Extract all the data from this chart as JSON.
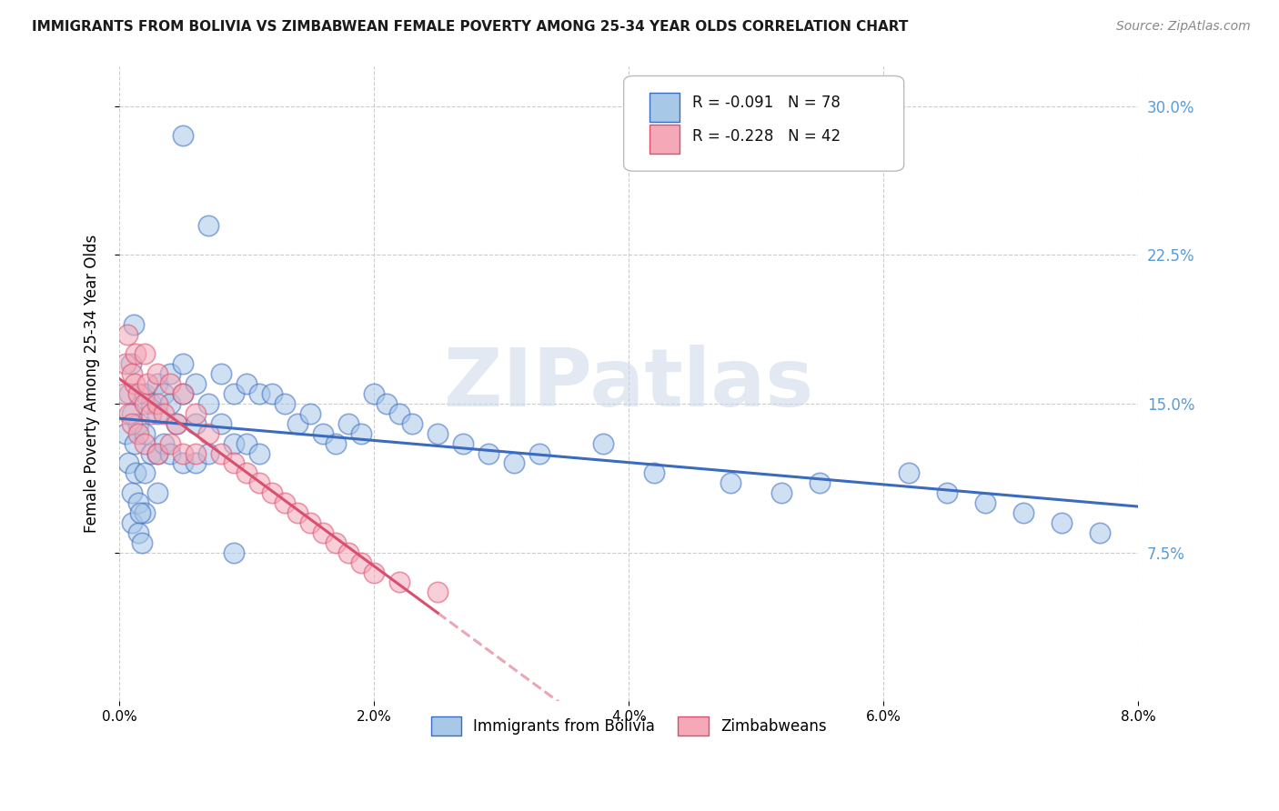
{
  "title": "IMMIGRANTS FROM BOLIVIA VS ZIMBABWEAN FEMALE POVERTY AMONG 25-34 YEAR OLDS CORRELATION CHART",
  "source": "Source: ZipAtlas.com",
  "ylabel": "Female Poverty Among 25-34 Year Olds",
  "y_ticks": [
    0.075,
    0.15,
    0.225,
    0.3
  ],
  "y_tick_labels": [
    "7.5%",
    "15.0%",
    "22.5%",
    "30.0%"
  ],
  "x_ticks": [
    0.0,
    0.02,
    0.04,
    0.06,
    0.08
  ],
  "x_tick_labels": [
    "0.0%",
    "2.0%",
    "4.0%",
    "6.0%",
    "8.0%"
  ],
  "xlim": [
    0.0,
    0.08
  ],
  "ylim": [
    0.0,
    0.32
  ],
  "legend_label1": "Immigrants from Bolivia",
  "legend_label2": "Zimbabweans",
  "R1": "-0.091",
  "N1": "78",
  "R2": "-0.228",
  "N2": "42",
  "color_blue": "#a8c8e8",
  "color_pink": "#f4a8b8",
  "trendline_blue": "#3a6bbf",
  "trendline_pink": "#d94f6e",
  "background_color": "#ffffff",
  "watermark": "ZIPatlas",
  "bolivia_x": [
    0.0005,
    0.0007,
    0.001,
    0.001,
    0.001,
    0.0012,
    0.0013,
    0.0015,
    0.0015,
    0.0015,
    0.002,
    0.002,
    0.002,
    0.002,
    0.0025,
    0.0025,
    0.003,
    0.003,
    0.003,
    0.003,
    0.0035,
    0.0035,
    0.004,
    0.004,
    0.004,
    0.0045,
    0.005,
    0.005,
    0.005,
    0.006,
    0.006,
    0.006,
    0.007,
    0.007,
    0.008,
    0.008,
    0.009,
    0.009,
    0.01,
    0.01,
    0.011,
    0.011,
    0.012,
    0.013,
    0.014,
    0.015,
    0.016,
    0.017,
    0.018,
    0.019,
    0.02,
    0.021,
    0.022,
    0.023,
    0.025,
    0.027,
    0.029,
    0.031,
    0.033,
    0.038,
    0.042,
    0.048,
    0.052,
    0.055,
    0.062,
    0.065,
    0.068,
    0.071,
    0.074,
    0.077,
    0.0008,
    0.0009,
    0.0011,
    0.0016,
    0.0018,
    0.005,
    0.007,
    0.009
  ],
  "bolivia_y": [
    0.135,
    0.12,
    0.145,
    0.105,
    0.09,
    0.13,
    0.115,
    0.14,
    0.1,
    0.085,
    0.155,
    0.135,
    0.115,
    0.095,
    0.15,
    0.125,
    0.16,
    0.145,
    0.125,
    0.105,
    0.155,
    0.13,
    0.165,
    0.15,
    0.125,
    0.14,
    0.17,
    0.155,
    0.12,
    0.16,
    0.14,
    0.12,
    0.15,
    0.125,
    0.165,
    0.14,
    0.155,
    0.13,
    0.16,
    0.13,
    0.155,
    0.125,
    0.155,
    0.15,
    0.14,
    0.145,
    0.135,
    0.13,
    0.14,
    0.135,
    0.155,
    0.15,
    0.145,
    0.14,
    0.135,
    0.13,
    0.125,
    0.12,
    0.125,
    0.13,
    0.115,
    0.11,
    0.105,
    0.11,
    0.115,
    0.105,
    0.1,
    0.095,
    0.09,
    0.085,
    0.155,
    0.17,
    0.19,
    0.095,
    0.08,
    0.285,
    0.24,
    0.075
  ],
  "zimbabwe_x": [
    0.0004,
    0.0005,
    0.0006,
    0.0008,
    0.001,
    0.001,
    0.0012,
    0.0013,
    0.0015,
    0.0015,
    0.002,
    0.002,
    0.002,
    0.0022,
    0.0025,
    0.003,
    0.003,
    0.003,
    0.0035,
    0.004,
    0.004,
    0.0045,
    0.005,
    0.005,
    0.006,
    0.006,
    0.007,
    0.008,
    0.009,
    0.01,
    0.011,
    0.012,
    0.013,
    0.014,
    0.015,
    0.016,
    0.017,
    0.018,
    0.019,
    0.02,
    0.022,
    0.025
  ],
  "zimbabwe_y": [
    0.155,
    0.17,
    0.185,
    0.145,
    0.165,
    0.14,
    0.16,
    0.175,
    0.155,
    0.135,
    0.175,
    0.15,
    0.13,
    0.16,
    0.145,
    0.165,
    0.15,
    0.125,
    0.145,
    0.16,
    0.13,
    0.14,
    0.155,
    0.125,
    0.145,
    0.125,
    0.135,
    0.125,
    0.12,
    0.115,
    0.11,
    0.105,
    0.1,
    0.095,
    0.09,
    0.085,
    0.08,
    0.075,
    0.07,
    0.065,
    0.06,
    0.055
  ]
}
